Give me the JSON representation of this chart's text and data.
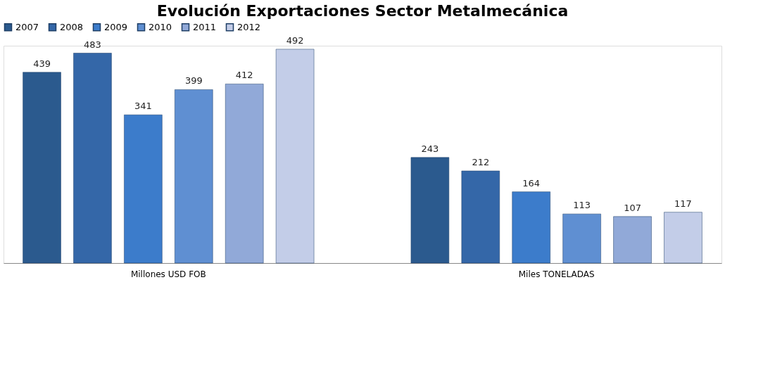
{
  "chart_data": {
    "type": "bar",
    "title": "Evolución Exportaciones Sector Metalmecánica",
    "categories": [
      "Millones USD FOB",
      "Miles TONELADAS"
    ],
    "series": [
      {
        "name": "2007",
        "color": "#2b5a8e",
        "values": [
          439,
          243
        ]
      },
      {
        "name": "2008",
        "color": "#3467a8",
        "values": [
          483,
          212
        ]
      },
      {
        "name": "2009",
        "color": "#3c7ccb",
        "values": [
          341,
          164
        ]
      },
      {
        "name": "2010",
        "color": "#5f8fd2",
        "values": [
          399,
          113
        ]
      },
      {
        "name": "2011",
        "color": "#91a9d8",
        "values": [
          412,
          107
        ]
      },
      {
        "name": "2012",
        "color": "#c3cde8",
        "values": [
          492,
          117
        ]
      }
    ],
    "data_labels": true,
    "legend": "top",
    "grid": false,
    "tick_labels": "x"
  }
}
